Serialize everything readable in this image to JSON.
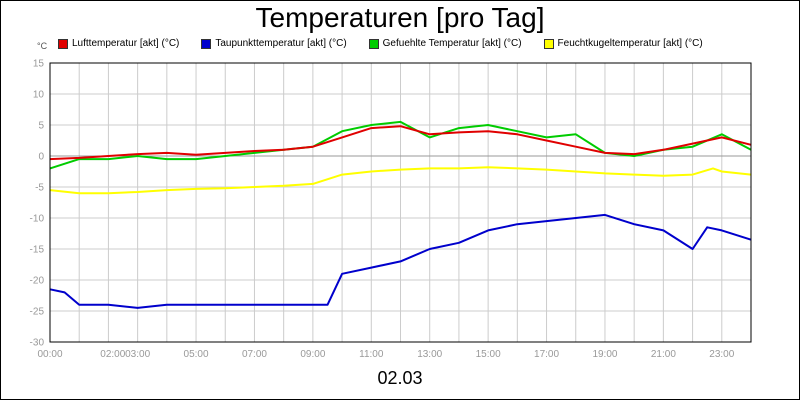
{
  "chart_data": {
    "type": "line",
    "title": "Temperaturen [pro Tag]",
    "unit_label": "°C",
    "date_label": "02.03",
    "ylim": [
      -30,
      15
    ],
    "y_ticks": [
      "15",
      "10",
      "5",
      "0",
      "-5",
      "-10",
      "-15",
      "-20",
      "-25",
      "-30"
    ],
    "x_ticks": [
      {
        "t": 0.0,
        "label": "00:00"
      },
      {
        "t": 2.15,
        "label": "02:00"
      },
      {
        "t": 3.0,
        "label": "03:00"
      },
      {
        "t": 5.0,
        "label": "05:00"
      },
      {
        "t": 7.0,
        "label": "07:00"
      },
      {
        "t": 9.0,
        "label": "09:00"
      },
      {
        "t": 11.0,
        "label": "11:00"
      },
      {
        "t": 13.0,
        "label": "13:00"
      },
      {
        "t": 15.0,
        "label": "15:00"
      },
      {
        "t": 17.0,
        "label": "17:00"
      },
      {
        "t": 19.0,
        "label": "19:00"
      },
      {
        "t": 21.0,
        "label": "21:00"
      },
      {
        "t": 23.0,
        "label": "23:00"
      }
    ],
    "x_range_hours": [
      0,
      24
    ],
    "grid": true,
    "legend_position": "top",
    "series": [
      {
        "name": "Lufttemperatur [akt] (°C)",
        "color": "#e00000",
        "points": [
          [
            0,
            -0.5
          ],
          [
            1,
            -0.3
          ],
          [
            2,
            0
          ],
          [
            3,
            0.3
          ],
          [
            4,
            0.5
          ],
          [
            5,
            0.2
          ],
          [
            6,
            0.5
          ],
          [
            7,
            0.8
          ],
          [
            8,
            1
          ],
          [
            9,
            1.5
          ],
          [
            10,
            3
          ],
          [
            11,
            4.5
          ],
          [
            12,
            4.8
          ],
          [
            13,
            3.5
          ],
          [
            14,
            3.8
          ],
          [
            15,
            4
          ],
          [
            16,
            3.5
          ],
          [
            17,
            2.5
          ],
          [
            18,
            1.5
          ],
          [
            19,
            0.5
          ],
          [
            20,
            0.3
          ],
          [
            21,
            1
          ],
          [
            22,
            2
          ],
          [
            23,
            3
          ],
          [
            24,
            1.8
          ]
        ]
      },
      {
        "name": "Taupunkttemperatur [akt] (°C)",
        "color": "#0000cc",
        "points": [
          [
            0,
            -21.5
          ],
          [
            0.5,
            -22
          ],
          [
            1,
            -24
          ],
          [
            2,
            -24
          ],
          [
            3,
            -24.5
          ],
          [
            4,
            -24
          ],
          [
            5,
            -24
          ],
          [
            6,
            -24
          ],
          [
            7,
            -24
          ],
          [
            8,
            -24
          ],
          [
            9,
            -24
          ],
          [
            9.5,
            -24
          ],
          [
            10,
            -19
          ],
          [
            11,
            -18
          ],
          [
            12,
            -17
          ],
          [
            13,
            -15
          ],
          [
            14,
            -14
          ],
          [
            15,
            -12
          ],
          [
            16,
            -11
          ],
          [
            17,
            -10.5
          ],
          [
            18,
            -10
          ],
          [
            19,
            -9.5
          ],
          [
            20,
            -11
          ],
          [
            21,
            -12
          ],
          [
            22,
            -15
          ],
          [
            22.5,
            -11.5
          ],
          [
            23,
            -12
          ],
          [
            24,
            -13.5
          ]
        ]
      },
      {
        "name": "Gefuehlte Temperatur [akt] (°C)",
        "color": "#00cc00",
        "points": [
          [
            0,
            -2
          ],
          [
            1,
            -0.5
          ],
          [
            2,
            -0.5
          ],
          [
            3,
            0
          ],
          [
            4,
            -0.5
          ],
          [
            5,
            -0.5
          ],
          [
            6,
            0
          ],
          [
            7,
            0.5
          ],
          [
            8,
            1
          ],
          [
            9,
            1.5
          ],
          [
            10,
            4
          ],
          [
            11,
            5
          ],
          [
            12,
            5.5
          ],
          [
            13,
            3
          ],
          [
            14,
            4.5
          ],
          [
            15,
            5
          ],
          [
            16,
            4
          ],
          [
            17,
            3
          ],
          [
            18,
            3.5
          ],
          [
            19,
            0.5
          ],
          [
            20,
            0
          ],
          [
            21,
            1
          ],
          [
            22,
            1.5
          ],
          [
            23,
            3.5
          ],
          [
            24,
            1
          ]
        ]
      },
      {
        "name": "Feuchtkugeltemperatur [akt] (°C)",
        "color": "#ffff00",
        "points": [
          [
            0,
            -5.5
          ],
          [
            1,
            -6
          ],
          [
            2,
            -6
          ],
          [
            3,
            -5.8
          ],
          [
            4,
            -5.5
          ],
          [
            5,
            -5.3
          ],
          [
            6,
            -5.2
          ],
          [
            7,
            -5
          ],
          [
            8,
            -4.8
          ],
          [
            9,
            -4.5
          ],
          [
            10,
            -3
          ],
          [
            11,
            -2.5
          ],
          [
            12,
            -2.2
          ],
          [
            13,
            -2
          ],
          [
            14,
            -2
          ],
          [
            15,
            -1.8
          ],
          [
            16,
            -2
          ],
          [
            17,
            -2.2
          ],
          [
            18,
            -2.5
          ],
          [
            19,
            -2.8
          ],
          [
            20,
            -3
          ],
          [
            21,
            -3.2
          ],
          [
            22,
            -3
          ],
          [
            22.7,
            -2
          ],
          [
            23,
            -2.5
          ],
          [
            24,
            -3
          ]
        ]
      }
    ]
  }
}
